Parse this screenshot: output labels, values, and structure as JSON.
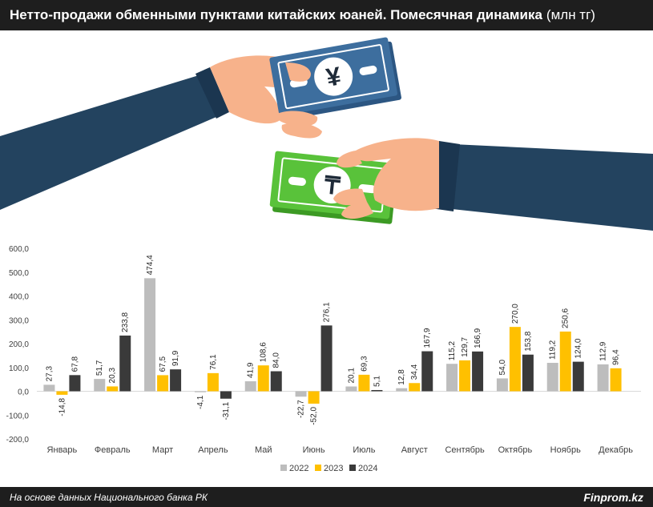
{
  "header": {
    "title": "Нетто-продажи обменными пунктами китайских юаней. Помесячная динамика",
    "unit": "(млн тг)"
  },
  "illustration": {
    "yuan_symbol": "¥",
    "tenge_symbol": "₸"
  },
  "colors": {
    "series_2022": "#bdbdbd",
    "series_2023": "#ffc000",
    "series_2024": "#3a3a3a",
    "header_bg": "#1e1e1e",
    "yuan_note": "#3d6e9e",
    "tenge_note": "#59c23a",
    "sleeve": "#23435f",
    "skin": "#f7b28b"
  },
  "footer": {
    "source": "На основе данных Национального банка РК",
    "brand": "Finprom.kz"
  },
  "chart_data": {
    "type": "bar",
    "categories": [
      "Январь",
      "Февраль",
      "Март",
      "Апрель",
      "Май",
      "Июнь",
      "Июль",
      "Август",
      "Сентябрь",
      "Октябрь",
      "Ноябрь",
      "Декабрь"
    ],
    "series": [
      {
        "name": "2022",
        "values": [
          27.3,
          51.7,
          474.4,
          -4.1,
          41.9,
          -22.7,
          20.1,
          12.8,
          115.2,
          54.0,
          119.2,
          112.9
        ]
      },
      {
        "name": "2023",
        "values": [
          -14.8,
          20.3,
          67.5,
          76.1,
          108.6,
          -52.0,
          69.3,
          34.4,
          129.7,
          270.0,
          250.6,
          96.4
        ]
      },
      {
        "name": "2024",
        "values": [
          67.8,
          233.8,
          91.9,
          -31.1,
          84.0,
          276.1,
          5.1,
          167.9,
          166.9,
          153.8,
          124.0,
          null
        ]
      }
    ],
    "y_ticks": [
      "600,0",
      "500,0",
      "400,0",
      "300,0",
      "200,0",
      "100,0",
      "0,0",
      "-100,0",
      "-200,0"
    ],
    "ylim": [
      -200,
      600
    ],
    "legend_position": "bottom",
    "grid": false
  }
}
